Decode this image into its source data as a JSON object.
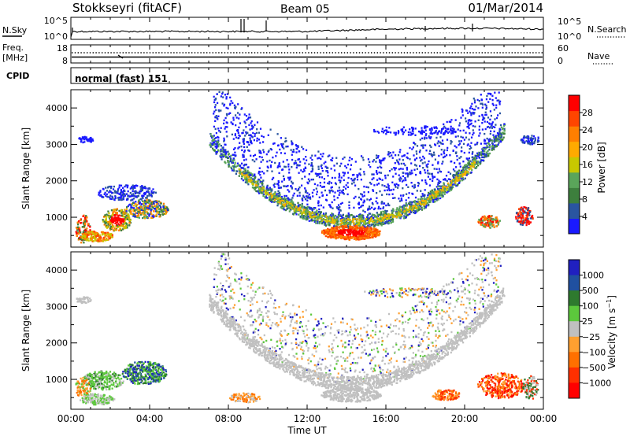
{
  "header": {
    "station": "Stokkseyri (fitACF)",
    "beam": "Beam 05",
    "date": "01/Mar/2014"
  },
  "noise_panel": {
    "left_label": "N.Sky",
    "right_label": "N.Search",
    "left_ticks": [
      "10^5",
      "10^0"
    ],
    "right_ticks": [
      "10^5",
      "10^0"
    ]
  },
  "freq_panel": {
    "left_label_1": "Freq.",
    "left_label_2": "[MHz]",
    "left_ticks": [
      "18",
      "8"
    ],
    "right_label": "Nave",
    "right_ticks": [
      "60",
      "0"
    ]
  },
  "cpid_panel": {
    "label": "CPID",
    "mode": "normal (fast) 151"
  },
  "colors": {
    "power": [
      "#1a1aff",
      "#2a55a0",
      "#3d7f3d",
      "#5aa55a",
      "#c8c800",
      "#ffaa00",
      "#ff7f00",
      "#ff4500",
      "#ff0000"
    ],
    "velocity": [
      "#2020c0",
      "#2050a0",
      "#2e7a2e",
      "#5cc83c",
      "#c0c0c0",
      "#ffa030",
      "#ff7000",
      "#ff3000",
      "#ff0000"
    ]
  },
  "chart_data": [
    {
      "type": "heatmap",
      "name": "power",
      "ylabel": "Slant Range [km]",
      "ylim": [
        180,
        4500
      ],
      "yticks": [
        "1000",
        "2000",
        "3000",
        "4000"
      ],
      "colorbar_label": "Power [dB]",
      "colorbar_ticks": [
        "4",
        "8",
        "12",
        "16",
        "20",
        "24",
        "28"
      ],
      "colorbar_range": [
        0,
        32
      ]
    },
    {
      "type": "heatmap",
      "name": "velocity",
      "ylabel": "Slant Range [km]",
      "ylim": [
        180,
        4500
      ],
      "yticks": [
        "1000",
        "2000",
        "3000",
        "4000"
      ],
      "colorbar_label": "Velocity [m s^-1]",
      "colorbar_ticks": [
        "1000",
        "500",
        "100",
        "25",
        "−25",
        "−100",
        "−500",
        "−1000"
      ]
    }
  ],
  "x_axis": {
    "label": "Time UT",
    "ticks": [
      "00:00",
      "04:00",
      "08:00",
      "12:00",
      "16:00",
      "20:00",
      "00:00"
    ]
  }
}
